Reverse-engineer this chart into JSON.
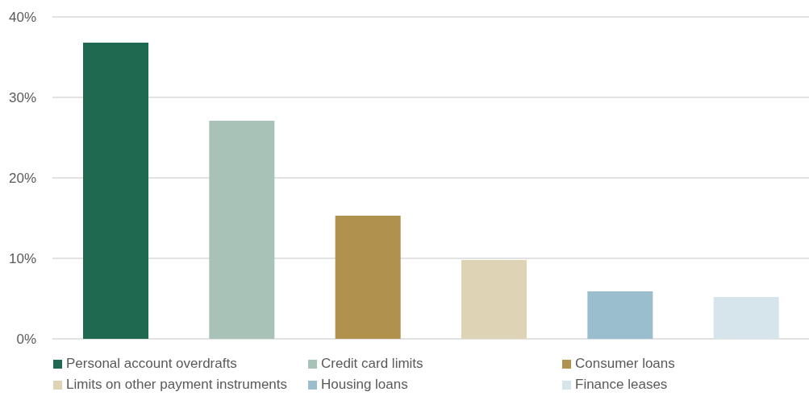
{
  "chart_data": {
    "type": "bar",
    "categories": [
      null,
      null,
      null,
      null,
      null,
      null
    ],
    "series": [
      {
        "name": "Personal account overdrafts",
        "color": "#1e6950",
        "values": [
          36.8,
          null,
          null,
          null,
          null,
          null
        ]
      },
      {
        "name": "Credit card limits",
        "color": "#a8c2b8",
        "values": [
          null,
          27.1,
          null,
          null,
          null,
          null
        ]
      },
      {
        "name": "Consumer loans",
        "color": "#b0914e",
        "values": [
          null,
          null,
          15.3,
          null,
          null,
          null
        ]
      },
      {
        "name": "Limits on other payment instruments",
        "color": "#dfd3b5",
        "values": [
          null,
          null,
          null,
          9.8,
          null,
          null
        ]
      },
      {
        "name": "Housing loans",
        "color": "#9bbece",
        "values": [
          null,
          null,
          null,
          null,
          5.9,
          null
        ]
      },
      {
        "name": "Finance leases",
        "color": "#d6e5ec",
        "values": [
          null,
          null,
          null,
          null,
          null,
          5.2
        ]
      }
    ],
    "stacked": true,
    "ylim": [
      0,
      40
    ],
    "yticks": [
      {
        "value": 0,
        "label": "0%"
      },
      {
        "value": 10,
        "label": "10%"
      },
      {
        "value": 20,
        "label": "20%"
      },
      {
        "value": 30,
        "label": "30%"
      },
      {
        "value": 40,
        "label": "40%"
      }
    ],
    "grid": "y",
    "legend": "bottom",
    "tick_labels": "y"
  }
}
